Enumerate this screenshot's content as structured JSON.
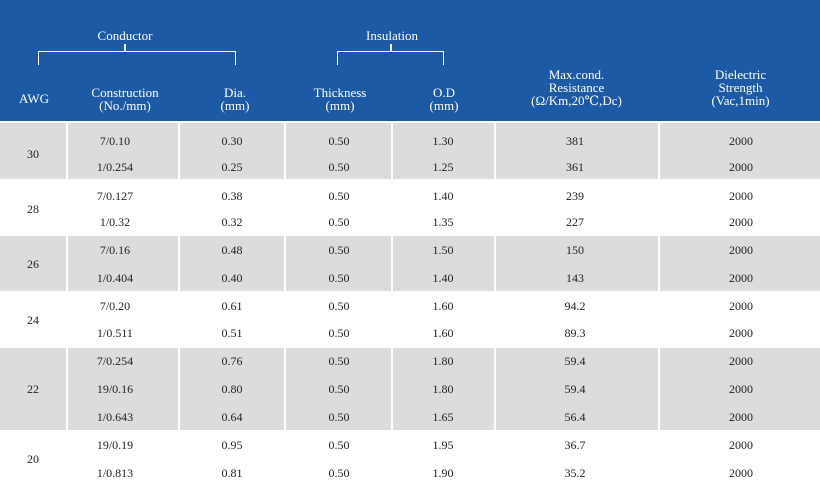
{
  "header": {
    "group_conductor": "Conductor",
    "group_insulation": "Insulation",
    "awg": "AWG",
    "construction_l1": "Construction",
    "construction_l2": "(No./mm)",
    "dia_l1": "Dia.",
    "dia_l2": "(mm)",
    "thickness_l1": "Thickness",
    "thickness_l2": "(mm)",
    "od_l1": "O.D",
    "od_l2": "(mm)",
    "resistance_l1": "Max.cond.",
    "resistance_l2": "Resistance",
    "resistance_l3": "(Ω/Km,20℃,Dc)",
    "dielectric_l1": "Dielectric",
    "dielectric_l2": "Strength",
    "dielectric_l3": "(Vac,1min)"
  },
  "colors": {
    "header_bg": "#1c5aa6",
    "shaded_cell": "#dcdcdc",
    "text": "#222222"
  },
  "groups": [
    {
      "awg": "30",
      "rows": [
        {
          "construction": "7/0.10",
          "dia": "0.30",
          "thickness": "0.50",
          "od": "1.30",
          "resistance": "381",
          "dielectric": "2000"
        },
        {
          "construction": "1/0.254",
          "dia": "0.25",
          "thickness": "0.50",
          "od": "1.25",
          "resistance": "361",
          "dielectric": "2000"
        }
      ]
    },
    {
      "awg": "28",
      "rows": [
        {
          "construction": "7/0.127",
          "dia": "0.38",
          "thickness": "0.50",
          "od": "1.40",
          "resistance": "239",
          "dielectric": "2000"
        },
        {
          "construction": "1/0.32",
          "dia": "0.32",
          "thickness": "0.50",
          "od": "1.35",
          "resistance": "227",
          "dielectric": "2000"
        }
      ]
    },
    {
      "awg": "26",
      "rows": [
        {
          "construction": "7/0.16",
          "dia": "0.48",
          "thickness": "0.50",
          "od": "1.50",
          "resistance": "150",
          "dielectric": "2000"
        },
        {
          "construction": "1/0.404",
          "dia": "0.40",
          "thickness": "0.50",
          "od": "1.40",
          "resistance": "143",
          "dielectric": "2000"
        }
      ]
    },
    {
      "awg": "24",
      "rows": [
        {
          "construction": "7/0.20",
          "dia": "0.61",
          "thickness": "0.50",
          "od": "1.60",
          "resistance": "94.2",
          "dielectric": "2000"
        },
        {
          "construction": "1/0.511",
          "dia": "0.51",
          "thickness": "0.50",
          "od": "1.60",
          "resistance": "89.3",
          "dielectric": "2000"
        }
      ]
    },
    {
      "awg": "22",
      "rows": [
        {
          "construction": "7/0.254",
          "dia": "0.76",
          "thickness": "0.50",
          "od": "1.80",
          "resistance": "59.4",
          "dielectric": "2000"
        },
        {
          "construction": "19/0.16",
          "dia": "0.80",
          "thickness": "0.50",
          "od": "1.80",
          "resistance": "59.4",
          "dielectric": "2000"
        },
        {
          "construction": "1/0.643",
          "dia": "0.64",
          "thickness": "0.50",
          "od": "1.65",
          "resistance": "56.4",
          "dielectric": "2000"
        }
      ]
    },
    {
      "awg": "20",
      "rows": [
        {
          "construction": "19/0.19",
          "dia": "0.95",
          "thickness": "0.50",
          "od": "1.95",
          "resistance": "36.7",
          "dielectric": "2000"
        },
        {
          "construction": "1/0.813",
          "dia": "0.81",
          "thickness": "0.50",
          "od": "1.90",
          "resistance": "35.2",
          "dielectric": "2000"
        }
      ]
    }
  ]
}
